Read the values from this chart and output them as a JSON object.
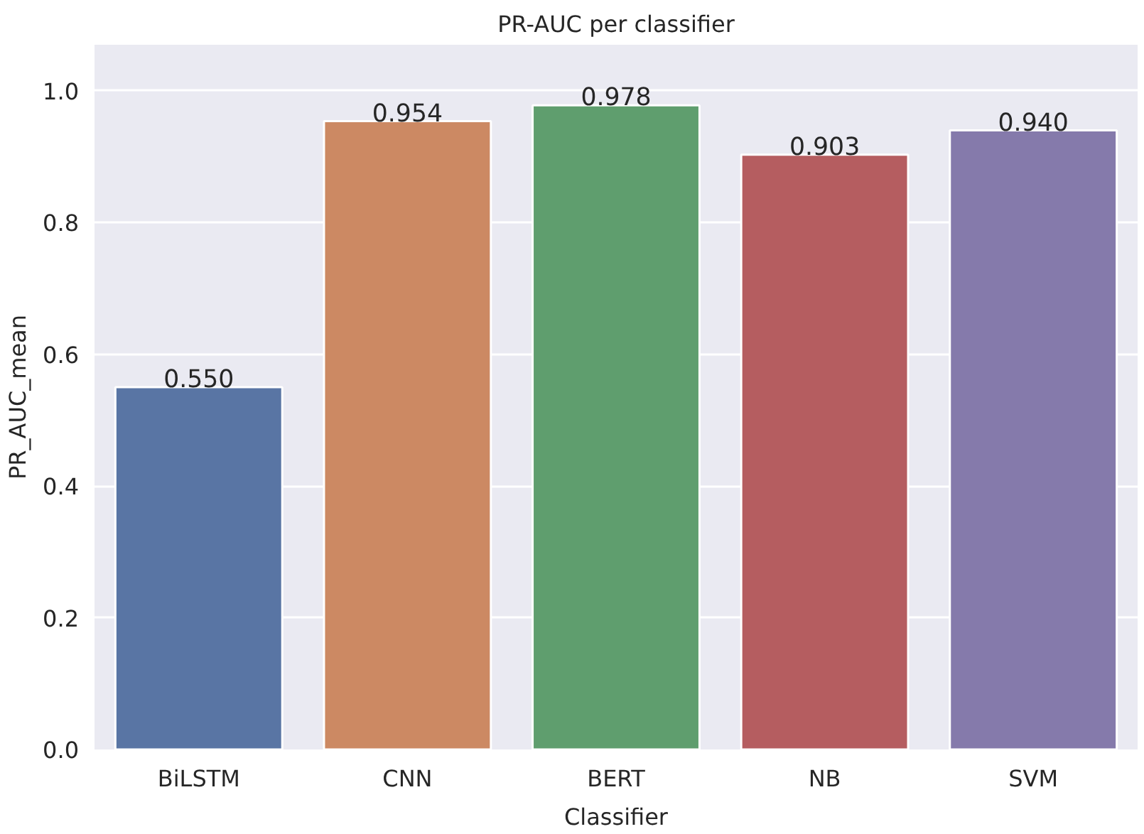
{
  "chart_data": {
    "type": "bar",
    "title": "PR-AUC per classifier",
    "xlabel": "Classifier",
    "ylabel": "PR_AUC_mean",
    "categories": [
      "BiLSTM",
      "CNN",
      "BERT",
      "NB",
      "SVM"
    ],
    "values": [
      0.55,
      0.954,
      0.978,
      0.903,
      0.94
    ],
    "colors": [
      "#5975a4",
      "#cc8963",
      "#5f9e6e",
      "#b55d60",
      "#857aab"
    ],
    "value_labels": [
      "0.550",
      "0.954",
      "0.978",
      "0.903",
      "0.940"
    ],
    "ylim": [
      0,
      1.07
    ],
    "yticks": [
      {
        "value": 0,
        "label": "0.0"
      },
      {
        "value": 0.2,
        "label": "0.2"
      },
      {
        "value": 0.4,
        "label": "0.4"
      },
      {
        "value": 0.6,
        "label": "0.6"
      },
      {
        "value": 0.8,
        "label": "0.8"
      },
      {
        "value": 1.0,
        "label": "1.0"
      }
    ],
    "grid": "y"
  }
}
